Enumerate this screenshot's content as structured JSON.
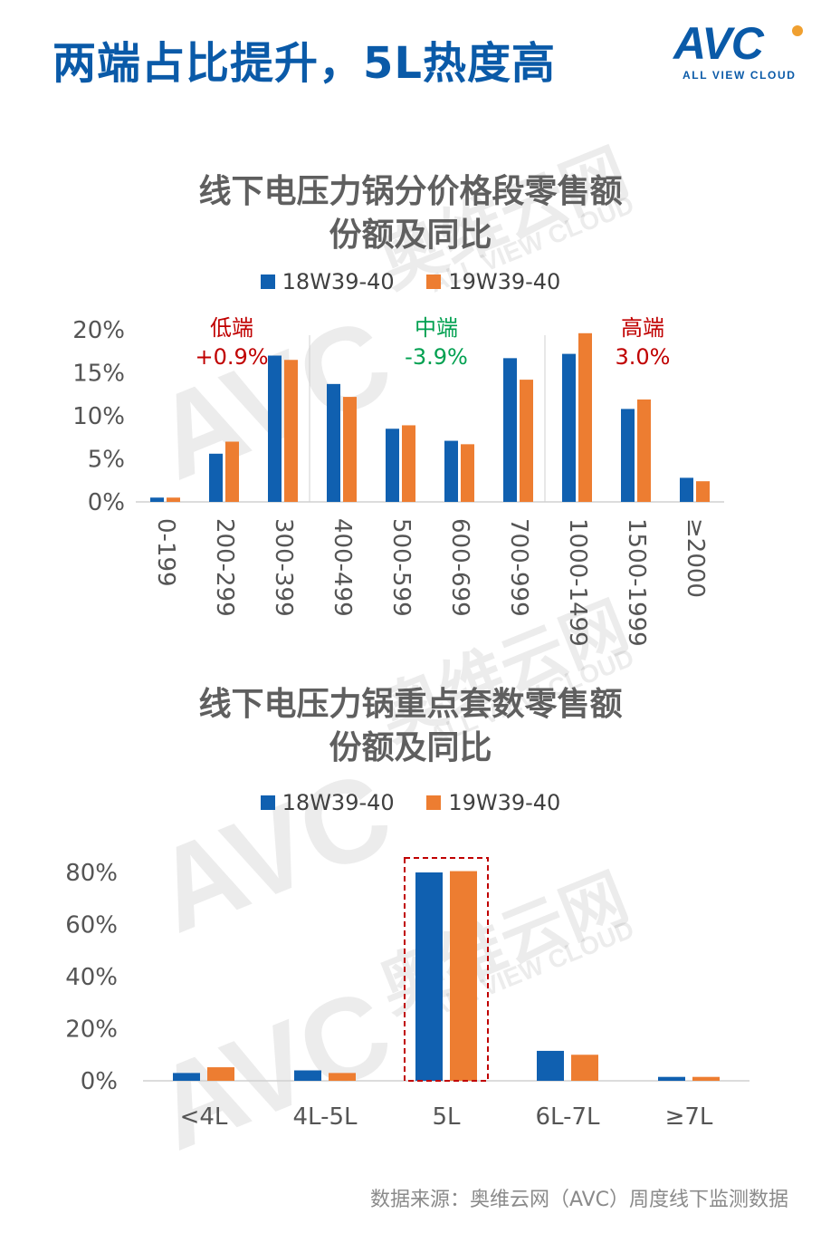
{
  "header": {
    "title": "两端占比提升，5L热度高"
  },
  "logo": {
    "text": "AVC",
    "subtitle": "ALL VIEW CLOUD"
  },
  "watermark": {
    "brand": "AVC",
    "cn": "奥维云网",
    "en": "ALL VIEW CLOUD"
  },
  "colors": {
    "series1": "#1060b0",
    "series2": "#ed7d31",
    "title": "#0a5aa8",
    "red": "#c00000",
    "green": "#00a050"
  },
  "chart_data": [
    {
      "type": "bar",
      "title_line1": "线下电压力锅分价格段零售额",
      "title_line2": "份额及同比",
      "categories": [
        "0-199",
        "200-299",
        "300-399",
        "400-499",
        "500-599",
        "600-699",
        "700-999",
        "1000-1499",
        "1500-1999",
        "≥2000"
      ],
      "series": [
        {
          "name": "18W39-40",
          "values": [
            0.5,
            5.6,
            17.0,
            13.7,
            8.5,
            7.1,
            16.7,
            17.2,
            10.8,
            2.8
          ]
        },
        {
          "name": "19W39-40",
          "values": [
            0.5,
            7.0,
            16.5,
            12.2,
            8.9,
            6.7,
            14.2,
            19.6,
            11.9,
            2.4
          ]
        }
      ],
      "yticks": [
        "0%",
        "5%",
        "10%",
        "15%",
        "20%"
      ],
      "ylim": [
        0,
        20
      ],
      "grid": false,
      "legend_position": "top",
      "annotations": [
        {
          "label": "低端",
          "change": "+0.9%",
          "color": "#c00000"
        },
        {
          "label": "中端",
          "change": "-3.9%",
          "color": "#00a050"
        },
        {
          "label": "高端",
          "change": "3.0%",
          "color": "#c00000"
        }
      ]
    },
    {
      "type": "bar",
      "title_line1": "线下电压力锅重点套数零售额",
      "title_line2": "份额及同比",
      "categories": [
        "<4L",
        "4L-5L",
        "5L",
        "6L-7L",
        "≥7L"
      ],
      "series": [
        {
          "name": "18W39-40",
          "values": [
            3.0,
            4.0,
            80.0,
            11.5,
            1.5
          ]
        },
        {
          "name": "19W39-40",
          "values": [
            5.2,
            3.0,
            80.5,
            10.0,
            1.5
          ]
        }
      ],
      "yticks": [
        "0%",
        "20%",
        "40%",
        "60%",
        "80%"
      ],
      "ylim": [
        0,
        80
      ],
      "grid": false,
      "legend_position": "top",
      "highlight_category": "5L"
    }
  ],
  "source": "数据来源：奥维云网（AVC）周度线下监测数据"
}
